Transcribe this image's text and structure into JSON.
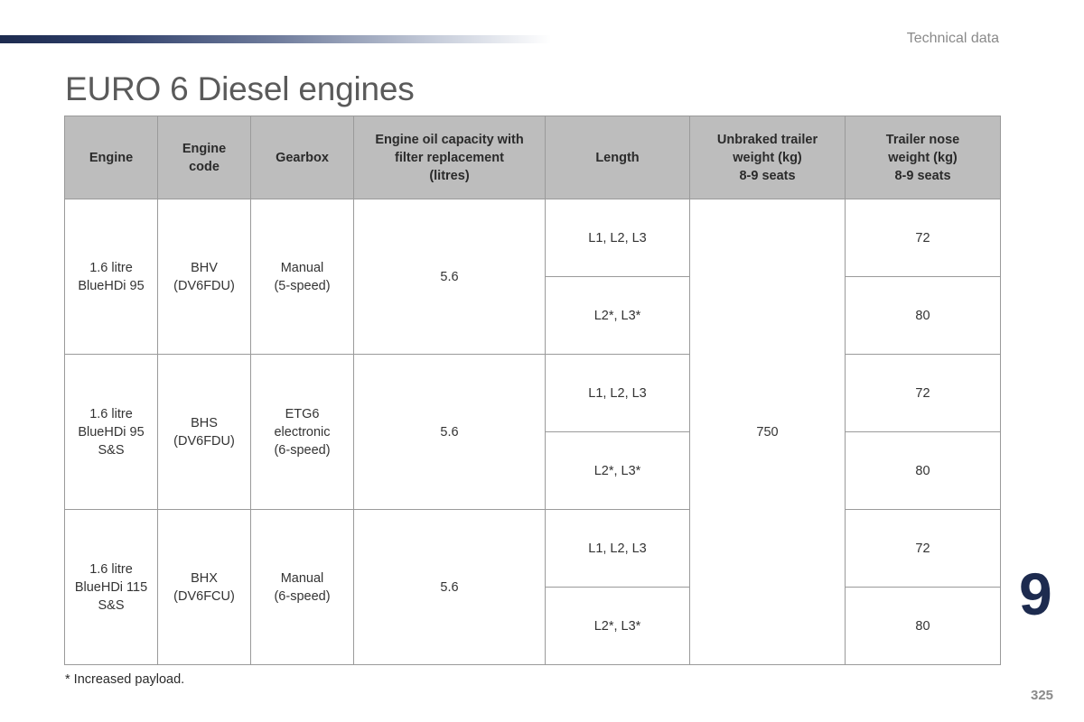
{
  "header": {
    "section_label": "Technical data",
    "title": "EURO 6 Diesel engines"
  },
  "table": {
    "headers": {
      "engine": "Engine",
      "engine_code": "Engine\ncode",
      "gearbox": "Gearbox",
      "oil_capacity": "Engine oil capacity with\nfilter replacement\n(litres)",
      "length": "Length",
      "unbraked_trailer": "Unbraked trailer\nweight (kg)\n8-9 seats",
      "trailer_nose": "Trailer nose\nweight (kg)\n8-9 seats"
    },
    "unbraked_trailer_value": "750",
    "rows": [
      {
        "engine": "1.6 litre\nBlueHDi 95",
        "engine_code": "BHV\n(DV6FDU)",
        "gearbox": "Manual\n(5-speed)",
        "oil_capacity": "5.6",
        "lengths": [
          "L1, L2, L3",
          "L2*, L3*"
        ],
        "nose_weights": [
          "72",
          "80"
        ]
      },
      {
        "engine": "1.6 litre\nBlueHDi 95\nS&S",
        "engine_code": "BHS\n(DV6FDU)",
        "gearbox": "ETG6\nelectronic\n(6-speed)",
        "oil_capacity": "5.6",
        "lengths": [
          "L1, L2, L3",
          "L2*, L3*"
        ],
        "nose_weights": [
          "72",
          "80"
        ]
      },
      {
        "engine": "1.6 litre\nBlueHDi 115\nS&S",
        "engine_code": "BHX\n(DV6FCU)",
        "gearbox": "Manual\n(6-speed)",
        "oil_capacity": "5.6",
        "lengths": [
          "L1, L2, L3",
          "L2*, L3*"
        ],
        "nose_weights": [
          "72",
          "80"
        ]
      }
    ]
  },
  "footnote": "* Increased payload.",
  "chapter_number": "9",
  "page_number": "325",
  "colors": {
    "header_fill": "#bdbdbd",
    "accent_navy": "#1d2b4f",
    "border": "#9a9a9a"
  }
}
